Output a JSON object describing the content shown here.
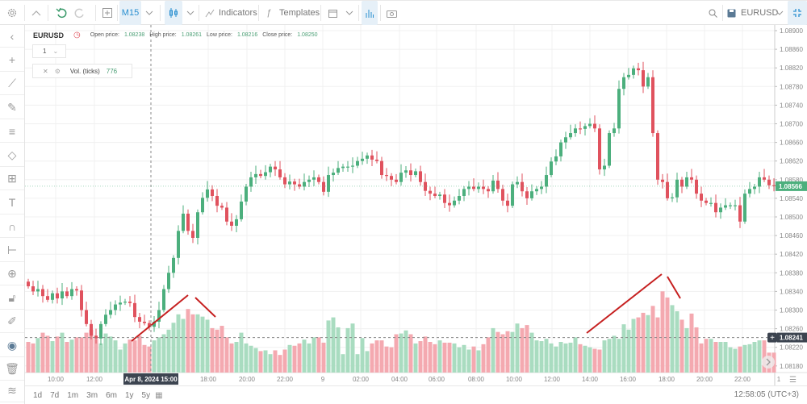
{
  "toolbar": {
    "timeframe": "M15",
    "indicators": "Indicators",
    "templates": "Templates",
    "symbol": "EURUSD"
  },
  "legend": {
    "symbol": "EURUSD",
    "open_label": "Open price:",
    "open": "1.08238",
    "high_label": "High price:",
    "high": "1.08261",
    "low_label": "Low price:",
    "low": "1.08216",
    "close_label": "Close price:",
    "close": "1.08250",
    "pane_select": "1",
    "volume_label": "Vol. (ticks)",
    "volume_value": "776"
  },
  "crosshair": {
    "time": "Apr 8, 2024 15:00",
    "price": "1.08241"
  },
  "current_price": "1.08566",
  "bottom": {
    "ranges": [
      "1d",
      "7d",
      "1m",
      "3m",
      "6m",
      "1y",
      "5y"
    ],
    "clock": "12:58:05 (UTC+3)"
  },
  "colors": {
    "up": "#4caf7d",
    "down": "#e0525e",
    "vol_up": "#a9dcc0",
    "vol_down": "#f4a9b0",
    "accent": "#2a8fd0",
    "annotation": "#c62020"
  },
  "icons": {
    "left": [
      "chevron-left",
      "crosshair",
      "trend-line",
      "brush",
      "parallel-channel",
      "polygon",
      "pattern",
      "text",
      "magnet",
      "measure",
      "zoom-in",
      "lock",
      "edit",
      "eye",
      "trash",
      "layers"
    ]
  },
  "chart_data": {
    "type": "candlestick",
    "price_ticks": [
      "1.08900",
      "1.08860",
      "1.08820",
      "1.08780",
      "1.08740",
      "1.08700",
      "1.08660",
      "1.08620",
      "1.08580",
      "1.08540",
      "1.08500",
      "1.08460",
      "1.08420",
      "1.08380",
      "1.08340",
      "1.08300",
      "1.08260",
      "1.08220",
      "1.08180"
    ],
    "ylim": [
      1.0818,
      1.089
    ],
    "time_ticks": [
      "10:00",
      "12:00",
      "18:00",
      "20:00",
      "22:00",
      "9",
      "02:00",
      "04:00",
      "06:00",
      "08:00",
      "10:00",
      "12:00",
      "14:00",
      "16:00",
      "18:00",
      "20:00",
      "22:00",
      "1"
    ],
    "close": [
      1.08351,
      1.0834,
      1.08345,
      1.0833,
      1.08322,
      1.08336,
      1.08325,
      1.0834,
      1.0833,
      1.08345,
      1.08342,
      1.083,
      1.0827,
      1.08245,
      1.08239,
      1.0827,
      1.0829,
      1.083,
      1.08312,
      1.08316,
      1.08318,
      1.08315,
      1.08285,
      1.08275,
      1.08272,
      1.08264,
      1.08275,
      1.083,
      1.08345,
      1.0838,
      1.08412,
      1.0847,
      1.08507,
      1.0847,
      1.08455,
      1.0851,
      1.08541,
      1.08559,
      1.08545,
      1.08524,
      1.0852,
      1.0849,
      1.08481,
      1.08495,
      1.08533,
      1.08565,
      1.08585,
      1.08592,
      1.08588,
      1.08596,
      1.08608,
      1.08602,
      1.08585,
      1.0857,
      1.08576,
      1.0857,
      1.08565,
      1.08575,
      1.0858,
      1.08585,
      1.08575,
      1.08554,
      1.0859,
      1.08595,
      1.08605,
      1.08608,
      1.08608,
      1.0861,
      1.0862,
      1.08625,
      1.08632,
      1.08623,
      1.0862,
      1.0859,
      1.08588,
      1.0858,
      1.08575,
      1.08595,
      1.086,
      1.0859,
      1.08598,
      1.08575,
      1.08556,
      1.0855,
      1.08545,
      1.08548,
      1.0853,
      1.08525,
      1.08535,
      1.08545,
      1.0856,
      1.08565,
      1.0856,
      1.08565,
      1.0856,
      1.08555,
      1.08578,
      1.0856,
      1.08535,
      1.08524,
      1.0857,
      1.08575,
      1.08555,
      1.0854,
      1.08555,
      1.0856,
      1.08565,
      1.0859,
      1.08619,
      1.0863,
      1.0866,
      1.08671,
      1.0868,
      1.0869,
      1.08689,
      1.08695,
      1.087,
      1.0869,
      1.08602,
      1.0861,
      1.0868,
      1.0869,
      1.08775,
      1.088,
      1.08805,
      1.08819,
      1.08815,
      1.0878,
      1.088,
      1.0868,
      1.0858,
      1.08575,
      1.0854,
      1.08542,
      1.0858,
      1.08565,
      1.08585,
      1.0858,
      1.0855,
      1.08535,
      1.0853,
      1.0853,
      1.0851,
      1.0852,
      1.08525,
      1.08525,
      1.08525,
      1.0849,
      1.0855,
      1.0856,
      1.08565,
      1.08585,
      1.0858,
      1.08568,
      1.08566
    ],
    "volume": [
      400,
      380,
      450,
      520,
      480,
      410,
      470,
      520,
      400,
      430,
      460,
      460,
      520,
      560,
      440,
      380,
      510,
      470,
      420,
      300,
      380,
      430,
      420,
      480,
      360,
      340,
      420,
      460,
      500,
      560,
      650,
      760,
      700,
      830,
      760,
      760,
      730,
      690,
      580,
      560,
      610,
      460,
      380,
      400,
      520,
      380,
      350,
      320,
      280,
      290,
      240,
      290,
      230,
      300,
      360,
      350,
      380,
      430,
      380,
      460,
      460,
      390,
      680,
      720,
      590,
      240,
      580,
      640,
      240,
      450,
      280,
      380,
      420,
      420,
      340,
      330,
      500,
      510,
      550,
      500,
      380,
      410,
      470,
      400,
      370,
      420,
      390,
      390,
      380,
      330,
      360,
      300,
      340,
      290,
      370,
      460,
      580,
      530,
      500,
      540,
      530,
      640,
      580,
      620,
      520,
      420,
      410,
      440,
      380,
      340,
      400,
      380,
      390,
      460,
      370,
      350,
      330,
      310,
      300,
      420,
      440,
      480,
      440,
      630,
      560,
      700,
      720,
      780,
      750,
      870,
      720,
      1060,
      980,
      880,
      800,
      690,
      580,
      770,
      590,
      380,
      440,
      440,
      400,
      400,
      400,
      330,
      310,
      340,
      360,
      370,
      400,
      420,
      420,
      260,
      260
    ]
  }
}
